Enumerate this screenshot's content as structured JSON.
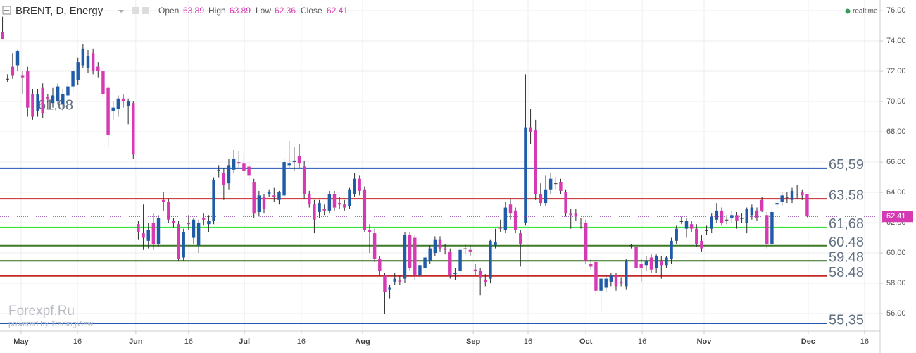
{
  "chart_data": {
    "type": "candlestick",
    "title": "BRENT, D, Energy",
    "ohlc_labels": [
      "Open",
      "High",
      "Low",
      "Close"
    ],
    "status": "realtime",
    "watermark": "Forexpf.Ru",
    "credit": "powered by TradingView",
    "up_color": "#1f5ba6",
    "down_color": "#d53ab3",
    "xlim": [
      -0.5,
      174.5
    ],
    "xticks": [
      {
        "value": 3.7,
        "label": "May"
      },
      {
        "value": 14.9,
        "label": "16"
      },
      {
        "value": 26.5,
        "label": "Jun"
      },
      {
        "value": 37,
        "label": "16"
      },
      {
        "value": 48.1,
        "label": "Jul"
      },
      {
        "value": 59.4,
        "label": "16"
      },
      {
        "value": 71.6,
        "label": "Aug"
      },
      {
        "value": 93.6,
        "label": "Sep"
      },
      {
        "value": 104.5,
        "label": "16"
      },
      {
        "value": 116,
        "label": "Oct"
      },
      {
        "value": 127.2,
        "label": "16"
      },
      {
        "value": 139.5,
        "label": "Nov"
      },
      {
        "value": 160.2,
        "label": "Dec"
      },
      {
        "value": 171.4,
        "label": "16"
      }
    ],
    "ylim": [
      54.84,
      76.7
    ],
    "yticks": [
      {
        "value": 56,
        "label": "56.00"
      },
      {
        "value": 58,
        "label": "58.00"
      },
      {
        "value": 60,
        "label": "60.00"
      },
      {
        "value": 62,
        "label": "62.00"
      },
      {
        "value": 64,
        "label": "64.00"
      },
      {
        "value": 66,
        "label": "66.00"
      },
      {
        "value": 68,
        "label": "68.00"
      },
      {
        "value": 70,
        "label": "70.00"
      },
      {
        "value": 72,
        "label": "72.00"
      },
      {
        "value": 74,
        "label": "74.00"
      },
      {
        "value": 76,
        "label": "76.00"
      }
    ],
    "grid": true,
    "levels": [
      {
        "value": 65.59,
        "label": "65,59",
        "color": "#2456b4"
      },
      {
        "value": 63.58,
        "label": "63.58",
        "color": "#c62828"
      },
      {
        "value": 61.68,
        "label": "61,68",
        "color": "#39e639"
      },
      {
        "value": 60.48,
        "label": "60.48",
        "color": "#3d7a26"
      },
      {
        "value": 59.48,
        "label": "59.48",
        "color": "#2e6b1a"
      },
      {
        "value": 58.48,
        "label": "58.48",
        "color": "#c62828"
      },
      {
        "value": 55.35,
        "label": "55,35",
        "color": "#2456b4"
      }
    ],
    "x": [
      0,
      1,
      2,
      3,
      4,
      5,
      6,
      7,
      8,
      9,
      10,
      11,
      12,
      13,
      14,
      15,
      16,
      17,
      18,
      19,
      20,
      21,
      22,
      23,
      24,
      25,
      26,
      27,
      28,
      29,
      30,
      31,
      32,
      33,
      34,
      35,
      36,
      37,
      38,
      39,
      40,
      41,
      42,
      43,
      44,
      45,
      46,
      47,
      48,
      49,
      50,
      51,
      52,
      53,
      54,
      55,
      56,
      57,
      58,
      59,
      60,
      61,
      62,
      63,
      64,
      65,
      66,
      67,
      68,
      69,
      70,
      71,
      72,
      73,
      74,
      75,
      76,
      77,
      78,
      79,
      80,
      81,
      82,
      83,
      84,
      85,
      86,
      87,
      88,
      89,
      90,
      91,
      92,
      93,
      94,
      95,
      96,
      97,
      98,
      99,
      100,
      101,
      102,
      103,
      104,
      105,
      106,
      107,
      108,
      109,
      110,
      111,
      112,
      113,
      114,
      115,
      116,
      117,
      118,
      119,
      120,
      121,
      122,
      123,
      124,
      125,
      126,
      127,
      128,
      129,
      130,
      131,
      132,
      133,
      134,
      135,
      136,
      137,
      138,
      139,
      140,
      141,
      142,
      143,
      144,
      145,
      146,
      147,
      148,
      149,
      150,
      151,
      152,
      153,
      154,
      155,
      156,
      157,
      158,
      159,
      160
    ],
    "ohlc": [
      [
        74.6,
        75.6,
        74.1,
        74.1
      ],
      [
        71.5,
        71.8,
        71.3,
        71.5
      ],
      [
        72.3,
        73.2,
        71.5,
        71.7
      ],
      [
        72.4,
        73.4,
        72.0,
        73.3
      ],
      [
        71.7,
        72.0,
        70.5,
        71.6
      ],
      [
        72.0,
        72.3,
        69.0,
        69.6
      ],
      [
        70.5,
        70.8,
        68.8,
        69.0
      ],
      [
        69.4,
        70.8,
        69.0,
        70.5
      ],
      [
        70.9,
        71.2,
        68.9,
        69.2
      ],
      [
        70.3,
        70.5,
        69.5,
        70.2
      ],
      [
        69.9,
        70.9,
        69.6,
        70.4
      ],
      [
        70.0,
        71.2,
        69.8,
        71.0
      ],
      [
        69.8,
        70.8,
        69.4,
        70.5
      ],
      [
        70.4,
        71.3,
        70.2,
        71.0
      ],
      [
        71.0,
        72.3,
        70.7,
        72.0
      ],
      [
        71.4,
        72.9,
        71.1,
        72.6
      ],
      [
        72.4,
        73.8,
        72.2,
        73.5
      ],
      [
        72.2,
        73.4,
        71.9,
        73.0
      ],
      [
        73.2,
        73.5,
        71.8,
        72.0
      ],
      [
        72.3,
        72.6,
        71.6,
        72.0
      ],
      [
        72.0,
        72.2,
        70.2,
        70.5
      ],
      [
        70.9,
        71.1,
        67.0,
        67.8
      ],
      [
        69.4,
        70.0,
        68.8,
        69.6
      ],
      [
        69.5,
        70.4,
        69.0,
        70.2
      ],
      [
        70.2,
        70.5,
        69.6,
        70.0
      ],
      [
        69.7,
        70.2,
        68.5,
        70.0
      ],
      [
        69.9,
        70.0,
        66.2,
        66.5
      ],
      [
        61.9,
        62.1,
        60.9,
        61.4
      ],
      [
        61.3,
        63.2,
        60.2,
        61.0
      ],
      [
        60.8,
        62.0,
        60.3,
        61.5
      ],
      [
        62.0,
        62.6,
        60.2,
        60.6
      ],
      [
        60.6,
        62.5,
        60.4,
        62.3
      ],
      [
        63.5,
        64.0,
        62.8,
        63.4
      ],
      [
        63.4,
        63.6,
        62.0,
        62.2
      ],
      [
        62.1,
        62.3,
        61.7,
        62.0
      ],
      [
        61.9,
        62.1,
        59.5,
        59.6
      ],
      [
        59.7,
        61.6,
        59.5,
        61.4
      ],
      [
        62.0,
        62.5,
        61.5,
        61.9
      ],
      [
        61.0,
        62.3,
        60.6,
        62.2
      ],
      [
        60.5,
        62.2,
        60.0,
        62.0
      ],
      [
        62.3,
        62.6,
        61.8,
        62.2
      ],
      [
        61.9,
        62.5,
        61.4,
        62.1
      ],
      [
        62.1,
        65.0,
        61.9,
        64.8
      ],
      [
        65.4,
        65.8,
        65.0,
        65.5
      ],
      [
        65.3,
        65.6,
        63.5,
        64.5
      ],
      [
        64.6,
        66.2,
        64.2,
        65.8
      ],
      [
        65.5,
        66.8,
        65.3,
        66.2
      ],
      [
        66.0,
        66.7,
        65.6,
        65.9
      ],
      [
        65.9,
        66.6,
        65.2,
        65.4
      ],
      [
        65.7,
        66.0,
        64.8,
        65.1
      ],
      [
        64.7,
        64.9,
        62.3,
        62.6
      ],
      [
        62.7,
        64.1,
        62.4,
        63.8
      ],
      [
        63.7,
        63.9,
        62.6,
        62.9
      ],
      [
        63.9,
        64.2,
        63.7,
        64.0
      ],
      [
        63.8,
        64.3,
        63.4,
        63.7
      ],
      [
        63.5,
        64.1,
        63.2,
        64.0
      ],
      [
        63.8,
        66.3,
        63.6,
        66.0
      ],
      [
        65.8,
        67.4,
        65.6,
        65.9
      ],
      [
        66.0,
        67.0,
        65.4,
        66.1
      ],
      [
        66.4,
        67.2,
        65.6,
        65.9
      ],
      [
        65.7,
        66.1,
        63.6,
        63.9
      ],
      [
        63.9,
        64.1,
        63.0,
        63.2
      ],
      [
        63.2,
        63.5,
        61.3,
        62.2
      ],
      [
        62.7,
        63.5,
        62.3,
        63.3
      ],
      [
        62.9,
        63.2,
        62.5,
        62.8
      ],
      [
        62.8,
        64.1,
        62.6,
        63.9
      ],
      [
        63.9,
        64.1,
        62.8,
        63.0
      ],
      [
        63.3,
        63.7,
        62.9,
        63.2
      ],
      [
        63.2,
        63.5,
        62.8,
        63.0
      ],
      [
        63.1,
        64.3,
        62.9,
        64.2
      ],
      [
        63.9,
        65.3,
        63.7,
        64.9
      ],
      [
        64.9,
        65.1,
        63.8,
        64.1
      ],
      [
        64.2,
        64.4,
        61.4,
        61.5
      ],
      [
        61.5,
        61.9,
        60.0,
        61.4
      ],
      [
        61.3,
        61.6,
        59.4,
        59.6
      ],
      [
        59.6,
        59.8,
        58.5,
        58.8
      ],
      [
        58.5,
        58.7,
        56.0,
        57.4
      ],
      [
        57.6,
        57.9,
        57.0,
        57.7
      ],
      [
        58.1,
        58.7,
        57.9,
        58.3
      ],
      [
        58.2,
        58.5,
        57.9,
        58.1
      ],
      [
        58.3,
        61.4,
        58.0,
        61.2
      ],
      [
        61.2,
        61.4,
        58.8,
        59.0
      ],
      [
        61.0,
        61.2,
        58.2,
        58.5
      ],
      [
        58.5,
        59.4,
        58.3,
        59.2
      ],
      [
        59.0,
        59.9,
        58.7,
        59.7
      ],
      [
        59.5,
        60.5,
        59.3,
        60.3
      ],
      [
        60.0,
        61.1,
        59.8,
        60.9
      ],
      [
        60.9,
        61.1,
        60.1,
        60.3
      ],
      [
        60.3,
        60.6,
        59.9,
        60.2
      ],
      [
        60.1,
        60.3,
        58.3,
        58.5
      ],
      [
        58.6,
        59.0,
        58.2,
        58.7
      ],
      [
        58.8,
        60.4,
        58.6,
        60.2
      ],
      [
        60.3,
        60.6,
        59.9,
        60.3
      ],
      [
        60.2,
        60.5,
        59.8,
        60.1
      ],
      [
        58.9,
        59.3,
        58.5,
        58.8
      ],
      [
        58.8,
        59.0,
        57.2,
        58.4
      ],
      [
        58.2,
        58.6,
        57.8,
        58.1
      ],
      [
        58.3,
        60.9,
        58.0,
        60.8
      ],
      [
        60.5,
        61.6,
        60.3,
        60.7
      ],
      [
        61.7,
        62.2,
        61.4,
        61.6
      ],
      [
        61.5,
        63.4,
        61.3,
        63.0
      ],
      [
        63.2,
        63.6,
        62.2,
        62.6
      ],
      [
        62.8,
        63.0,
        61.3,
        61.5
      ],
      [
        61.3,
        61.5,
        59.1,
        60.6
      ],
      [
        62.0,
        71.8,
        61.8,
        68.3
      ],
      [
        68.3,
        69.5,
        67.2,
        68.0
      ],
      [
        68.1,
        68.8,
        63.5,
        63.9
      ],
      [
        63.9,
        64.6,
        63.1,
        63.3
      ],
      [
        63.3,
        65.1,
        63.1,
        64.2
      ],
      [
        64.2,
        65.3,
        63.9,
        64.9
      ],
      [
        64.6,
        65.0,
        64.2,
        64.6
      ],
      [
        64.7,
        64.9,
        63.9,
        64.1
      ],
      [
        64.0,
        64.2,
        62.4,
        62.6
      ],
      [
        62.6,
        62.9,
        61.6,
        62.5
      ],
      [
        62.6,
        62.9,
        62.1,
        62.4
      ],
      [
        62.0,
        62.3,
        61.6,
        62.0
      ],
      [
        62.0,
        62.2,
        59.3,
        59.5
      ],
      [
        59.3,
        59.6,
        58.9,
        59.1
      ],
      [
        59.4,
        59.6,
        57.2,
        57.5
      ],
      [
        57.5,
        58.4,
        56.1,
        58.3
      ],
      [
        57.7,
        58.5,
        57.4,
        58.3
      ],
      [
        58.1,
        58.7,
        57.8,
        58.5
      ],
      [
        58.5,
        58.7,
        57.5,
        57.8
      ],
      [
        58.1,
        58.4,
        57.8,
        58.0
      ],
      [
        57.8,
        59.6,
        57.6,
        59.5
      ],
      [
        60.5,
        60.6,
        60.3,
        60.5
      ],
      [
        60.4,
        60.6,
        58.8,
        59.0
      ],
      [
        59.3,
        59.6,
        58.1,
        59.0
      ],
      [
        59.2,
        59.8,
        58.8,
        59.5
      ],
      [
        59.7,
        59.9,
        58.7,
        58.9
      ],
      [
        59.0,
        59.9,
        58.7,
        59.8
      ],
      [
        59.5,
        59.8,
        58.3,
        59.2
      ],
      [
        59.2,
        59.8,
        59.0,
        59.7
      ],
      [
        59.6,
        61.0,
        59.3,
        60.8
      ],
      [
        60.8,
        61.8,
        60.6,
        61.6
      ],
      [
        62.1,
        62.4,
        61.9,
        62.1
      ],
      [
        61.6,
        62.3,
        61.0,
        62.1
      ],
      [
        61.9,
        62.1,
        61.4,
        61.6
      ],
      [
        61.6,
        61.9,
        60.4,
        60.6
      ],
      [
        60.8,
        61.2,
        60.1,
        60.3
      ],
      [
        61.5,
        61.8,
        61.2,
        61.5
      ],
      [
        61.6,
        62.6,
        61.3,
        62.4
      ],
      [
        62.2,
        63.3,
        62.0,
        62.8
      ],
      [
        62.8,
        63.0,
        61.8,
        62.0
      ],
      [
        62.2,
        62.5,
        61.9,
        62.2
      ],
      [
        62.3,
        62.8,
        62.0,
        62.5
      ],
      [
        62.5,
        62.7,
        61.6,
        62.1
      ],
      [
        62.3,
        62.6,
        62.0,
        62.3
      ],
      [
        62.0,
        63.0,
        61.3,
        62.9
      ],
      [
        62.5,
        63.2,
        62.2,
        63.0
      ],
      [
        62.8,
        63.0,
        62.1,
        62.3
      ],
      [
        63.5,
        63.7,
        62.7,
        62.8
      ],
      [
        62.5,
        62.7,
        60.3,
        60.6
      ],
      [
        60.6,
        62.9,
        60.4,
        62.7
      ],
      [
        63.2,
        63.6,
        62.9,
        63.3
      ],
      [
        63.4,
        64.0,
        63.1,
        63.8
      ],
      [
        63.7,
        64.0,
        63.3,
        63.7
      ],
      [
        63.5,
        64.3,
        63.3,
        64.1
      ],
      [
        63.9,
        64.5,
        63.6,
        63.9
      ],
      [
        64.0,
        64.2,
        63.5,
        63.8
      ],
      [
        63.89,
        63.89,
        62.36,
        62.41
      ]
    ]
  }
}
